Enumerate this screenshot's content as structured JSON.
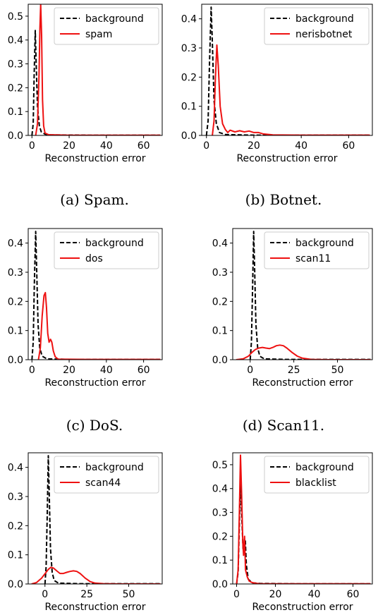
{
  "panels": [
    {
      "caption": "(a) Spam."
    },
    {
      "caption": "(b) Botnet."
    },
    {
      "caption": "(c) DoS."
    },
    {
      "caption": "(d) Scan11."
    },
    {
      "caption": ""
    },
    {
      "caption": ""
    }
  ],
  "chart_data": [
    {
      "type": "line",
      "xlabel": "Reconstruction error",
      "xlim": [
        -2,
        70
      ],
      "ylim": [
        0,
        0.55
      ],
      "xticks": [
        0,
        20,
        40,
        60
      ],
      "yticks": [
        0.0,
        0.1,
        0.2,
        0.3,
        0.4,
        0.5
      ],
      "xtick_labels": [
        "0",
        "20",
        "40",
        "60"
      ],
      "ytick_labels": [
        "0.0",
        "0.1",
        "0.2",
        "0.3",
        "0.4",
        "0.5"
      ],
      "legend_position": "top-right",
      "series": [
        {
          "name": "background",
          "color": "#000000",
          "style": "dashed",
          "points": [
            [
              0,
              0
            ],
            [
              0.7,
              0.05
            ],
            [
              1.2,
              0.25
            ],
            [
              1.8,
              0.44
            ],
            [
              2.3,
              0.3
            ],
            [
              3.0,
              0.12
            ],
            [
              4.0,
              0.04
            ],
            [
              5.0,
              0.015
            ],
            [
              7,
              0.005
            ],
            [
              10,
              0.002
            ],
            [
              30,
              0.001
            ],
            [
              50,
              0.001
            ],
            [
              69,
              0.001
            ]
          ]
        },
        {
          "name": "spam",
          "color": "#ee1111",
          "style": "solid",
          "points": [
            [
              2,
              0
            ],
            [
              3,
              0.05
            ],
            [
              3.8,
              0.25
            ],
            [
              4.3,
              0.45
            ],
            [
              4.7,
              0.55
            ],
            [
              5.2,
              0.42
            ],
            [
              5.7,
              0.15
            ],
            [
              6.3,
              0.04
            ],
            [
              7,
              0.01
            ],
            [
              9,
              0.003
            ],
            [
              20,
              0.001
            ],
            [
              40,
              0.001
            ],
            [
              69,
              0.001
            ]
          ]
        }
      ]
    },
    {
      "type": "line",
      "xlabel": "Reconstruction error",
      "xlim": [
        -2,
        70
      ],
      "ylim": [
        0,
        0.45
      ],
      "xticks": [
        0,
        20,
        40,
        60
      ],
      "yticks": [
        0.0,
        0.1,
        0.2,
        0.3,
        0.4
      ],
      "xtick_labels": [
        "0",
        "20",
        "40",
        "60"
      ],
      "ytick_labels": [
        "0.0",
        "0.1",
        "0.2",
        "0.3",
        "0.4"
      ],
      "legend_position": "top-right",
      "series": [
        {
          "name": "background",
          "color": "#000000",
          "style": "dashed",
          "points": [
            [
              0,
              0
            ],
            [
              0.7,
              0.05
            ],
            [
              1.3,
              0.25
            ],
            [
              2,
              0.44
            ],
            [
              2.5,
              0.32
            ],
            [
              3.2,
              0.12
            ],
            [
              4.2,
              0.04
            ],
            [
              5.5,
              0.01
            ],
            [
              8,
              0.003
            ],
            [
              20,
              0.001
            ],
            [
              50,
              0.001
            ],
            [
              69,
              0.001
            ]
          ]
        },
        {
          "name": "nerisbotnet",
          "color": "#ee1111",
          "style": "solid",
          "points": [
            [
              2.5,
              0
            ],
            [
              3.2,
              0.05
            ],
            [
              3.8,
              0.2
            ],
            [
              4.4,
              0.31
            ],
            [
              5,
              0.24
            ],
            [
              5.8,
              0.1
            ],
            [
              6.8,
              0.04
            ],
            [
              8,
              0.02
            ],
            [
              9,
              0.01
            ],
            [
              10,
              0.018
            ],
            [
              12,
              0.012
            ],
            [
              14,
              0.016
            ],
            [
              16,
              0.012
            ],
            [
              18,
              0.015
            ],
            [
              20,
              0.01
            ],
            [
              22,
              0.01
            ],
            [
              24,
              0.005
            ],
            [
              28,
              0.002
            ],
            [
              40,
              0.001
            ],
            [
              69,
              0.001
            ]
          ]
        }
      ]
    },
    {
      "type": "line",
      "xlabel": "Reconstruction error",
      "xlim": [
        -2,
        70
      ],
      "ylim": [
        0,
        0.45
      ],
      "xticks": [
        0,
        20,
        40,
        60
      ],
      "yticks": [
        0.0,
        0.1,
        0.2,
        0.3,
        0.4
      ],
      "xtick_labels": [
        "0",
        "20",
        "40",
        "60"
      ],
      "ytick_labels": [
        "0.0",
        "0.1",
        "0.2",
        "0.3",
        "0.4"
      ],
      "legend_position": "top-right",
      "series": [
        {
          "name": "background",
          "color": "#000000",
          "style": "dashed",
          "points": [
            [
              0,
              0
            ],
            [
              0.7,
              0.06
            ],
            [
              1.3,
              0.26
            ],
            [
              2,
              0.44
            ],
            [
              2.6,
              0.3
            ],
            [
              3.3,
              0.12
            ],
            [
              4.2,
              0.04
            ],
            [
              5.5,
              0.012
            ],
            [
              8,
              0.003
            ],
            [
              20,
              0.001
            ],
            [
              50,
              0.001
            ],
            [
              69,
              0.001
            ]
          ]
        },
        {
          "name": "dos",
          "color": "#ee1111",
          "style": "solid",
          "points": [
            [
              3.5,
              0
            ],
            [
              4.5,
              0.04
            ],
            [
              5.5,
              0.15
            ],
            [
              6.5,
              0.22
            ],
            [
              7.2,
              0.23
            ],
            [
              7.8,
              0.18
            ],
            [
              8.5,
              0.09
            ],
            [
              9.2,
              0.06
            ],
            [
              10,
              0.07
            ],
            [
              10.7,
              0.06
            ],
            [
              11.5,
              0.03
            ],
            [
              12.5,
              0.01
            ],
            [
              14,
              0.002
            ],
            [
              30,
              0.001
            ],
            [
              69,
              0.001
            ]
          ]
        }
      ]
    },
    {
      "type": "line",
      "xlabel": "Reconstruction error",
      "xlim": [
        -10,
        70
      ],
      "ylim": [
        0,
        0.45
      ],
      "xticks": [
        0,
        25,
        50
      ],
      "yticks": [
        0.0,
        0.1,
        0.2,
        0.3,
        0.4
      ],
      "xtick_labels": [
        "0",
        "25",
        "50"
      ],
      "ytick_labels": [
        "0.0",
        "0.1",
        "0.2",
        "0.3",
        "0.4"
      ],
      "legend_position": "top-right",
      "series": [
        {
          "name": "background",
          "color": "#000000",
          "style": "dashed",
          "points": [
            [
              0,
              0
            ],
            [
              0.7,
              0.06
            ],
            [
              1.4,
              0.25
            ],
            [
              2,
              0.44
            ],
            [
              2.6,
              0.3
            ],
            [
              3.3,
              0.12
            ],
            [
              4.3,
              0.04
            ],
            [
              5.5,
              0.012
            ],
            [
              8,
              0.003
            ],
            [
              20,
              0.001
            ],
            [
              50,
              0.001
            ],
            [
              69,
              0.001
            ]
          ]
        },
        {
          "name": "scan11",
          "color": "#ee1111",
          "style": "solid",
          "points": [
            [
              -8,
              0
            ],
            [
              -4,
              0.003
            ],
            [
              -1,
              0.012
            ],
            [
              1,
              0.025
            ],
            [
              3,
              0.035
            ],
            [
              5,
              0.04
            ],
            [
              7,
              0.042
            ],
            [
              9,
              0.04
            ],
            [
              11,
              0.038
            ],
            [
              13,
              0.042
            ],
            [
              15,
              0.048
            ],
            [
              17,
              0.05
            ],
            [
              19,
              0.048
            ],
            [
              21,
              0.04
            ],
            [
              24,
              0.025
            ],
            [
              27,
              0.012
            ],
            [
              30,
              0.005
            ],
            [
              35,
              0.001
            ],
            [
              45,
              0
            ],
            [
              69,
              0
            ]
          ]
        }
      ]
    },
    {
      "type": "line",
      "xlabel": "Reconstruction error",
      "xlim": [
        -10,
        70
      ],
      "ylim": [
        0,
        0.45
      ],
      "xticks": [
        0,
        25,
        50
      ],
      "yticks": [
        0.0,
        0.1,
        0.2,
        0.3,
        0.4
      ],
      "xtick_labels": [
        "0",
        "25",
        "50"
      ],
      "ytick_labels": [
        "0.0",
        "0.1",
        "0.2",
        "0.3",
        "0.4"
      ],
      "legend_position": "top-right",
      "series": [
        {
          "name": "background",
          "color": "#000000",
          "style": "dashed",
          "points": [
            [
              0,
              0
            ],
            [
              0.7,
              0.06
            ],
            [
              1.4,
              0.25
            ],
            [
              2,
              0.44
            ],
            [
              2.6,
              0.3
            ],
            [
              3.3,
              0.12
            ],
            [
              4.3,
              0.04
            ],
            [
              5.5,
              0.012
            ],
            [
              8,
              0.003
            ],
            [
              20,
              0.001
            ],
            [
              50,
              0.001
            ],
            [
              69,
              0.001
            ]
          ]
        },
        {
          "name": "scan44",
          "color": "#ee1111",
          "style": "solid",
          "points": [
            [
              -8,
              0
            ],
            [
              -5,
              0.005
            ],
            [
              -2,
              0.02
            ],
            [
              0,
              0.035
            ],
            [
              2,
              0.05
            ],
            [
              3.5,
              0.057
            ],
            [
              5,
              0.055
            ],
            [
              7,
              0.045
            ],
            [
              9,
              0.036
            ],
            [
              11,
              0.036
            ],
            [
              13,
              0.04
            ],
            [
              15,
              0.043
            ],
            [
              17,
              0.045
            ],
            [
              19,
              0.043
            ],
            [
              21,
              0.036
            ],
            [
              24,
              0.02
            ],
            [
              27,
              0.008
            ],
            [
              30,
              0.003
            ],
            [
              35,
              0.001
            ],
            [
              45,
              0
            ],
            [
              69,
              0
            ]
          ]
        }
      ]
    },
    {
      "type": "line",
      "xlabel": "Reconstruction error",
      "xlim": [
        -2,
        70
      ],
      "ylim": [
        0,
        0.55
      ],
      "xticks": [
        0,
        20,
        40,
        60
      ],
      "yticks": [
        0.0,
        0.1,
        0.2,
        0.3,
        0.4,
        0.5
      ],
      "xtick_labels": [
        "0",
        "20",
        "40",
        "60"
      ],
      "ytick_labels": [
        "0.0",
        "0.1",
        "0.2",
        "0.3",
        "0.4",
        "0.5"
      ],
      "legend_position": "top-right",
      "series": [
        {
          "name": "background",
          "color": "#000000",
          "style": "dashed",
          "points": [
            [
              0,
              0
            ],
            [
              0.8,
              0.05
            ],
            [
              1.4,
              0.25
            ],
            [
              2,
              0.44
            ],
            [
              2.6,
              0.3
            ],
            [
              3.3,
              0.15
            ],
            [
              4,
              0.13
            ],
            [
              4.5,
              0.18
            ],
            [
              5,
              0.08
            ],
            [
              6,
              0.02
            ],
            [
              8,
              0.005
            ],
            [
              12,
              0.002
            ],
            [
              30,
              0.001
            ],
            [
              69,
              0.001
            ]
          ]
        },
        {
          "name": "blacklist",
          "color": "#ee1111",
          "style": "solid",
          "points": [
            [
              0,
              0
            ],
            [
              0.8,
              0.06
            ],
            [
              1.4,
              0.3
            ],
            [
              2,
              0.54
            ],
            [
              2.6,
              0.38
            ],
            [
              3.2,
              0.17
            ],
            [
              3.6,
              0.12
            ],
            [
              4.1,
              0.2
            ],
            [
              4.6,
              0.06
            ],
            [
              5.5,
              0.03
            ],
            [
              6.5,
              0.012
            ],
            [
              8,
              0.006
            ],
            [
              10,
              0.003
            ],
            [
              12,
              0.001
            ],
            [
              20,
              0.001
            ],
            [
              40,
              0.001
            ],
            [
              69,
              0.001
            ]
          ]
        }
      ]
    }
  ]
}
